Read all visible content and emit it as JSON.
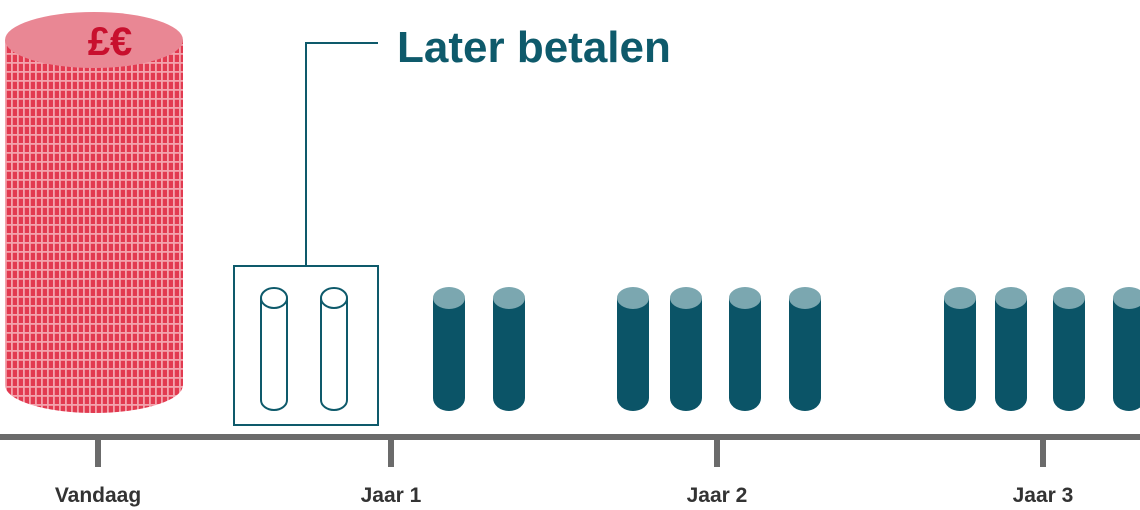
{
  "coin_stack": {
    "label": "£€"
  },
  "title": "Later betalen",
  "timeline": {
    "labels": [
      "Vandaag",
      "Jaar 1",
      "Jaar 2",
      "Jaar 3"
    ]
  }
}
